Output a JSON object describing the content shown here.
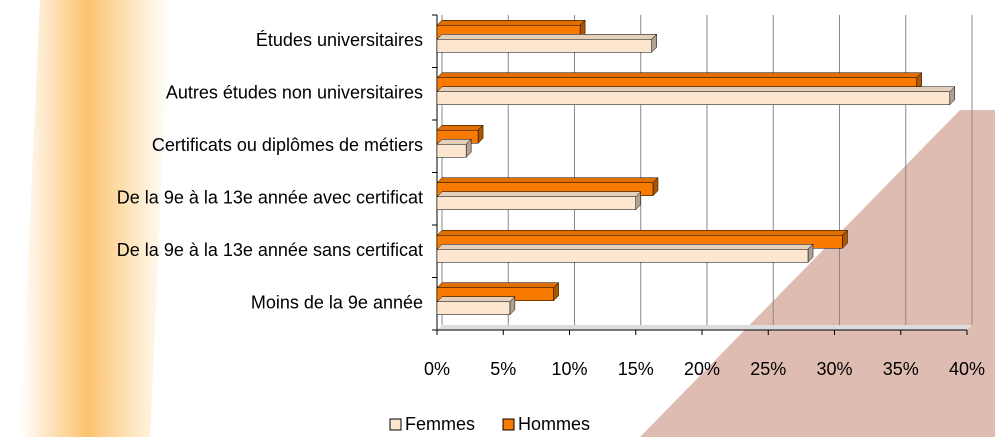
{
  "chart_data": {
    "type": "bar",
    "orientation": "horizontal",
    "categories": [
      "Études universitaires",
      "Autres études non universitaires",
      "Certificats ou diplômes de métiers",
      "De la 9e à la 13e année avec certificat",
      "De la 9e à la 13e année sans certificat",
      "Moins de la 9e année"
    ],
    "series": [
      {
        "name": "Femmes",
        "color": "#fde6d0",
        "values": [
          16.2,
          38.7,
          2.2,
          15.0,
          28.0,
          5.5
        ]
      },
      {
        "name": "Hommes",
        "color": "#f97a00",
        "values": [
          10.8,
          36.2,
          3.1,
          16.3,
          30.6,
          8.8
        ]
      }
    ],
    "xlim": [
      0,
      40
    ],
    "xticks": [
      {
        "value": 0,
        "label": "0%"
      },
      {
        "value": 5,
        "label": "5%"
      },
      {
        "value": 10,
        "label": "10%"
      },
      {
        "value": 15,
        "label": "15%"
      },
      {
        "value": 20,
        "label": "20%"
      },
      {
        "value": 25,
        "label": "25%"
      },
      {
        "value": 30,
        "label": "30%"
      },
      {
        "value": 35,
        "label": "35%"
      },
      {
        "value": 40,
        "label": "40%"
      }
    ],
    "grid": true,
    "legend": "bottom"
  }
}
